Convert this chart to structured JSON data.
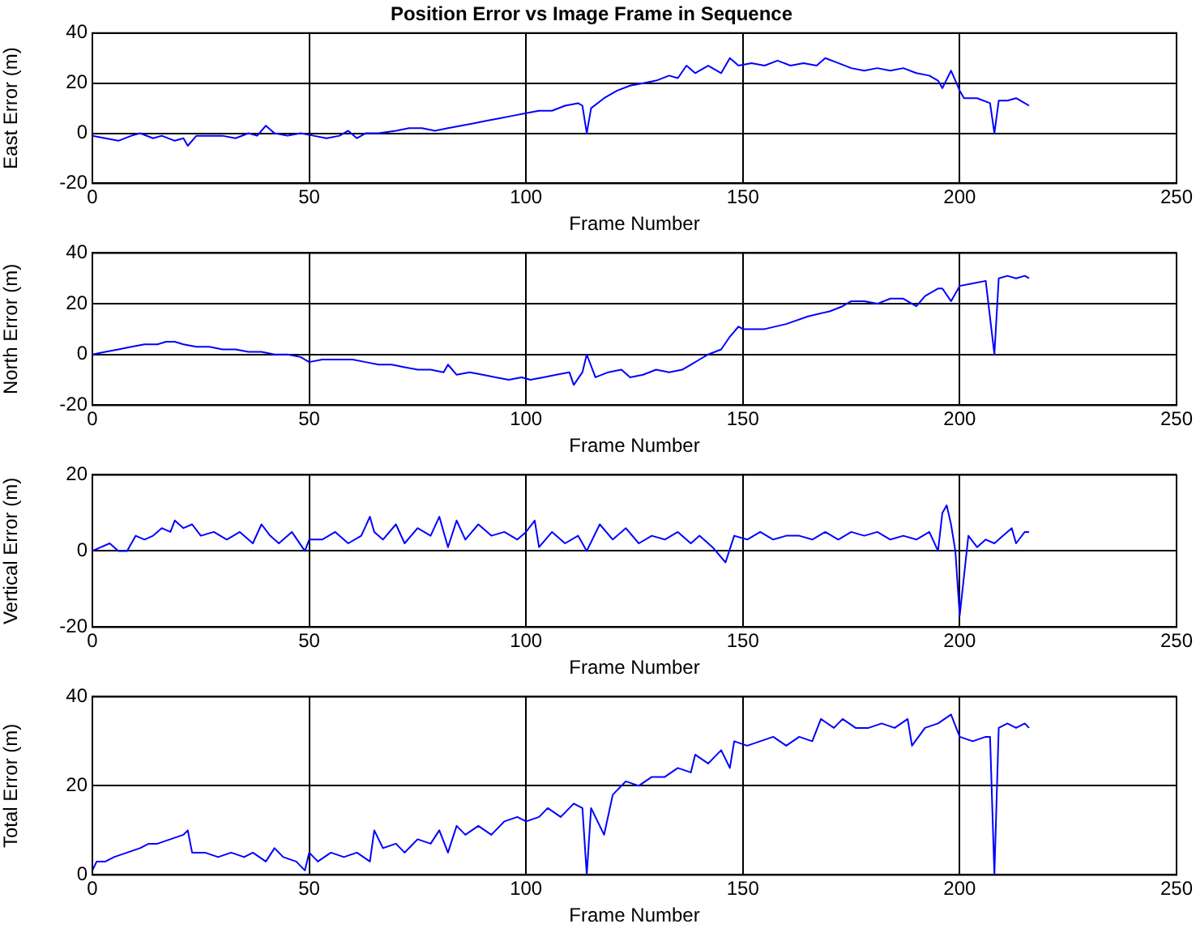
{
  "chart_data": [
    {
      "type": "line",
      "title": "Position Error vs Image Frame in Sequence",
      "xlabel": "Frame Number",
      "ylabel": "East Error (m)",
      "xlim": [
        0,
        250
      ],
      "xticks": [
        0,
        50,
        100,
        150,
        200,
        250
      ],
      "ylim": [
        -20,
        40
      ],
      "yticks": [
        -20,
        0,
        20,
        40
      ],
      "grid": true,
      "legend": false,
      "marker": "none",
      "line_style": "solid",
      "series": [
        {
          "color": "#0000ff",
          "x": [
            0,
            3,
            6,
            9,
            11,
            14,
            16,
            19,
            21,
            22,
            24,
            27,
            30,
            33,
            36,
            38,
            40,
            42,
            45,
            48,
            51,
            54,
            57,
            59,
            61,
            63,
            66,
            70,
            73,
            76,
            79,
            82,
            85,
            88,
            91,
            94,
            97,
            100,
            103,
            106,
            109,
            112,
            113,
            114,
            115,
            118,
            121,
            124,
            127,
            130,
            133,
            135,
            137,
            139,
            142,
            145,
            147,
            149,
            152,
            155,
            158,
            161,
            164,
            167,
            169,
            172,
            175,
            178,
            181,
            184,
            187,
            190,
            193,
            195,
            196,
            198,
            200,
            201,
            204,
            207,
            208,
            209,
            211,
            213,
            215,
            216
          ],
          "values": [
            -1,
            -2,
            -3,
            -1,
            0,
            -2,
            -1,
            -3,
            -2,
            -5,
            -1,
            -1,
            -1,
            -2,
            0,
            -1,
            3,
            0,
            -1,
            0,
            -1,
            -2,
            -1,
            1,
            -2,
            0,
            0,
            1,
            2,
            2,
            1,
            2,
            3,
            4,
            5,
            6,
            7,
            8,
            9,
            9,
            11,
            12,
            11,
            0,
            10,
            14,
            17,
            19,
            20,
            21,
            23,
            22,
            27,
            24,
            27,
            24,
            30,
            27,
            28,
            27,
            29,
            27,
            28,
            27,
            30,
            28,
            26,
            25,
            26,
            25,
            26,
            24,
            23,
            21,
            18,
            25,
            17,
            14,
            14,
            12,
            0,
            13,
            13,
            14,
            12,
            11
          ]
        }
      ]
    },
    {
      "type": "line",
      "xlabel": "Frame Number",
      "ylabel": "North Error (m)",
      "xlim": [
        0,
        250
      ],
      "xticks": [
        0,
        50,
        100,
        150,
        200,
        250
      ],
      "ylim": [
        -20,
        40
      ],
      "yticks": [
        -20,
        0,
        20,
        40
      ],
      "grid": true,
      "legend": false,
      "marker": "none",
      "line_style": "solid",
      "series": [
        {
          "color": "#0000ff",
          "x": [
            0,
            3,
            6,
            9,
            12,
            15,
            17,
            19,
            21,
            24,
            27,
            30,
            33,
            36,
            39,
            42,
            45,
            48,
            50,
            53,
            56,
            60,
            63,
            66,
            69,
            72,
            75,
            78,
            81,
            82,
            84,
            87,
            90,
            93,
            96,
            99,
            101,
            104,
            107,
            110,
            111,
            113,
            114,
            116,
            119,
            122,
            124,
            127,
            130,
            133,
            136,
            138,
            140,
            142,
            145,
            147,
            149,
            150,
            155,
            160,
            165,
            170,
            173,
            175,
            178,
            181,
            184,
            187,
            190,
            192,
            195,
            196,
            198,
            200,
            203,
            206,
            208,
            209,
            211,
            213,
            215,
            216
          ],
          "values": [
            0,
            1,
            2,
            3,
            4,
            4,
            5,
            5,
            4,
            3,
            3,
            2,
            2,
            1,
            1,
            0,
            0,
            -1,
            -3,
            -2,
            -2,
            -2,
            -3,
            -4,
            -4,
            -5,
            -6,
            -6,
            -7,
            -4,
            -8,
            -7,
            -8,
            -9,
            -10,
            -9,
            -10,
            -9,
            -8,
            -7,
            -12,
            -7,
            0,
            -9,
            -7,
            -6,
            -9,
            -8,
            -6,
            -7,
            -6,
            -4,
            -2,
            0,
            2,
            7,
            11,
            10,
            10,
            12,
            15,
            17,
            19,
            21,
            21,
            20,
            22,
            22,
            19,
            23,
            26,
            26,
            21,
            27,
            28,
            29,
            0,
            30,
            31,
            30,
            31,
            30
          ]
        }
      ]
    },
    {
      "type": "line",
      "xlabel": "Frame Number",
      "ylabel": "Vertical Error (m)",
      "xlim": [
        0,
        250
      ],
      "xticks": [
        0,
        50,
        100,
        150,
        200,
        250
      ],
      "ylim": [
        -20,
        20
      ],
      "yticks": [
        -20,
        0,
        20
      ],
      "grid": true,
      "legend": false,
      "marker": "none",
      "line_style": "solid",
      "series": [
        {
          "color": "#0000ff",
          "x": [
            0,
            2,
            4,
            6,
            8,
            10,
            12,
            14,
            16,
            18,
            19,
            21,
            23,
            25,
            28,
            31,
            34,
            37,
            39,
            41,
            43,
            46,
            49,
            50,
            53,
            56,
            59,
            62,
            64,
            65,
            67,
            70,
            72,
            75,
            78,
            80,
            82,
            84,
            86,
            89,
            92,
            95,
            98,
            100,
            102,
            103,
            106,
            109,
            112,
            114,
            117,
            120,
            123,
            126,
            129,
            132,
            135,
            138,
            140,
            143,
            146,
            148,
            151,
            154,
            157,
            160,
            163,
            166,
            169,
            172,
            175,
            178,
            181,
            184,
            187,
            190,
            193,
            195,
            196,
            197,
            198,
            199,
            200,
            202,
            204,
            206,
            208,
            210,
            212,
            213,
            215,
            216
          ],
          "values": [
            0,
            1,
            2,
            0,
            0,
            4,
            3,
            4,
            6,
            5,
            8,
            6,
            7,
            4,
            5,
            3,
            5,
            2,
            7,
            4,
            2,
            5,
            0,
            3,
            3,
            5,
            2,
            4,
            9,
            5,
            3,
            7,
            2,
            6,
            4,
            9,
            1,
            8,
            3,
            7,
            4,
            5,
            3,
            5,
            8,
            1,
            5,
            2,
            4,
            0,
            7,
            3,
            6,
            2,
            4,
            3,
            5,
            2,
            4,
            1,
            -3,
            4,
            3,
            5,
            3,
            4,
            4,
            3,
            5,
            3,
            5,
            4,
            5,
            3,
            4,
            3,
            5,
            0,
            10,
            12,
            7,
            0,
            -17,
            4,
            1,
            3,
            2,
            4,
            6,
            2,
            5,
            5
          ]
        }
      ]
    },
    {
      "type": "line",
      "xlabel": "Frame Number",
      "ylabel": "Total Error (m)",
      "xlim": [
        0,
        250
      ],
      "xticks": [
        0,
        50,
        100,
        150,
        200,
        250
      ],
      "ylim": [
        0,
        40
      ],
      "yticks": [
        0,
        20,
        40
      ],
      "grid": true,
      "legend": false,
      "marker": "none",
      "line_style": "solid",
      "series": [
        {
          "color": "#0000ff",
          "x": [
            0,
            1,
            3,
            5,
            8,
            11,
            13,
            15,
            18,
            21,
            22,
            23,
            26,
            29,
            32,
            35,
            37,
            40,
            42,
            44,
            47,
            49,
            50,
            52,
            55,
            58,
            61,
            64,
            65,
            67,
            70,
            72,
            75,
            78,
            80,
            82,
            84,
            86,
            89,
            92,
            95,
            98,
            100,
            103,
            105,
            108,
            111,
            113,
            114,
            115,
            118,
            120,
            123,
            126,
            129,
            132,
            135,
            138,
            139,
            142,
            145,
            147,
            148,
            151,
            154,
            157,
            160,
            163,
            166,
            168,
            171,
            173,
            176,
            179,
            182,
            185,
            188,
            189,
            192,
            195,
            198,
            200,
            203,
            206,
            207,
            208,
            209,
            211,
            213,
            215,
            216
          ],
          "values": [
            1,
            3,
            3,
            4,
            5,
            6,
            7,
            7,
            8,
            9,
            10,
            5,
            5,
            4,
            5,
            4,
            5,
            3,
            6,
            4,
            3,
            1,
            5,
            3,
            5,
            4,
            5,
            3,
            10,
            6,
            7,
            5,
            8,
            7,
            10,
            5,
            11,
            9,
            11,
            9,
            12,
            13,
            12,
            13,
            15,
            13,
            16,
            15,
            0,
            15,
            9,
            18,
            21,
            20,
            22,
            22,
            24,
            23,
            27,
            25,
            28,
            24,
            30,
            29,
            30,
            31,
            29,
            31,
            30,
            35,
            33,
            35,
            33,
            33,
            34,
            33,
            35,
            29,
            33,
            34,
            36,
            31,
            30,
            31,
            31,
            0,
            33,
            34,
            33,
            34,
            33
          ]
        }
      ]
    }
  ]
}
